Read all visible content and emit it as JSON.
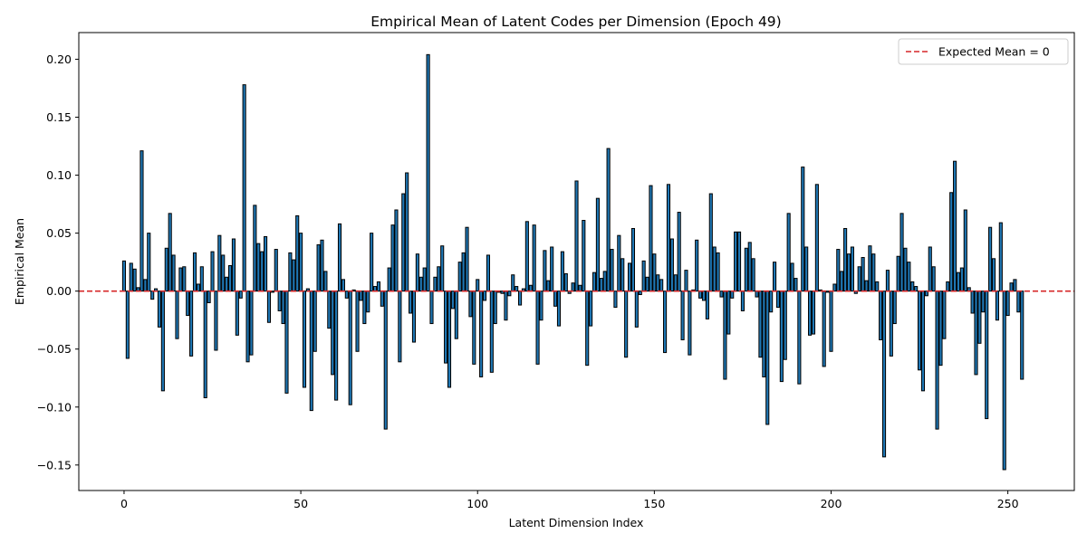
{
  "chart_data": {
    "type": "bar",
    "title": "Empirical Mean of Latent Codes per Dimension (Epoch 49)",
    "xlabel": "Latent Dimension Index",
    "ylabel": "Empirical Mean",
    "xlim": [
      -12.8,
      268.8
    ],
    "ylim": [
      -0.172,
      0.223
    ],
    "xticks": [
      0,
      50,
      100,
      150,
      200,
      250
    ],
    "xtick_labels": [
      "0",
      "50",
      "100",
      "150",
      "200",
      "250"
    ],
    "yticks": [
      -0.15,
      -0.1,
      -0.05,
      0.0,
      0.05,
      0.1,
      0.15,
      0.2
    ],
    "ytick_labels": [
      "−0.15",
      "−0.10",
      "−0.05",
      "0.00",
      "0.05",
      "0.10",
      "0.15",
      "0.20"
    ],
    "grid": false,
    "legend_position": "top-right",
    "bar_color": "#1f77b4",
    "bar_edge_color": "#000000",
    "reference_line": {
      "y": 0,
      "label": "Expected Mean = 0",
      "color": "#d62728",
      "style": "dashed"
    },
    "series": [
      {
        "values": [
          0.026,
          -0.058,
          0.024,
          0.019,
          0.003,
          0.121,
          0.01,
          0.05,
          -0.007,
          0.002,
          -0.031,
          -0.086,
          0.037,
          0.067,
          0.031,
          -0.041,
          0.02,
          0.021,
          -0.021,
          -0.056,
          0.033,
          0.006,
          0.021,
          -0.092,
          -0.01,
          0.034,
          -0.051,
          0.048,
          0.031,
          0.012,
          0.022,
          0.045,
          -0.038,
          -0.006,
          0.178,
          -0.061,
          -0.055,
          0.074,
          0.041,
          0.034,
          0.047,
          -0.027,
          -0.001,
          0.036,
          -0.017,
          -0.028,
          -0.088,
          0.033,
          0.027,
          0.065,
          0.05,
          -0.083,
          0.002,
          -0.103,
          -0.052,
          0.04,
          0.044,
          0.017,
          -0.032,
          -0.072,
          -0.094,
          0.058,
          0.01,
          -0.006,
          -0.098,
          0.001,
          -0.052,
          -0.008,
          -0.028,
          -0.018,
          0.05,
          0.004,
          0.008,
          -0.013,
          -0.119,
          0.02,
          0.057,
          0.07,
          -0.061,
          0.084,
          0.102,
          -0.019,
          -0.044,
          0.032,
          0.012,
          0.02,
          0.204,
          -0.028,
          0.012,
          0.021,
          0.039,
          -0.062,
          -0.083,
          -0.015,
          -0.041,
          0.025,
          0.033,
          0.055,
          -0.022,
          -0.063,
          0.01,
          -0.074,
          -0.008,
          0.031,
          -0.07,
          -0.028,
          -0.001,
          -0.002,
          -0.025,
          -0.004,
          0.014,
          0.004,
          -0.012,
          0.002,
          0.06,
          0.005,
          0.057,
          -0.063,
          -0.025,
          0.035,
          0.009,
          0.038,
          -0.013,
          -0.03,
          0.034,
          0.015,
          -0.002,
          0.007,
          0.095,
          0.005,
          0.061,
          -0.064,
          -0.03,
          0.016,
          0.08,
          0.011,
          0.017,
          0.123,
          0.036,
          -0.014,
          0.048,
          0.028,
          -0.057,
          0.024,
          0.054,
          -0.031,
          -0.003,
          0.026,
          0.012,
          0.091,
          0.032,
          0.014,
          0.01,
          -0.053,
          0.092,
          0.045,
          0.014,
          0.068,
          -0.042,
          0.018,
          -0.055,
          0.001,
          0.044,
          -0.006,
          -0.008,
          -0.024,
          0.084,
          0.038,
          0.033,
          -0.005,
          -0.076,
          -0.037,
          -0.006,
          0.051,
          0.051,
          -0.017,
          0.037,
          0.042,
          0.028,
          -0.005,
          -0.057,
          -0.074,
          -0.115,
          -0.018,
          0.025,
          -0.014,
          -0.078,
          -0.059,
          0.067,
          0.024,
          0.011,
          -0.08,
          0.107,
          0.038,
          -0.038,
          -0.037,
          0.092,
          0.001,
          -0.065,
          -0.001,
          -0.052,
          0.006,
          0.036,
          0.017,
          0.054,
          0.032,
          0.038,
          -0.002,
          0.021,
          0.029,
          0.009,
          0.039,
          0.032,
          0.008,
          -0.042,
          -0.143,
          0.018,
          -0.056,
          -0.028,
          0.03,
          0.067,
          0.037,
          0.025,
          0.008,
          0.004,
          -0.068,
          -0.086,
          -0.004,
          0.038,
          0.021,
          -0.119,
          -0.064,
          -0.041,
          0.008,
          0.085,
          0.112,
          0.016,
          0.02,
          0.07,
          0.003,
          -0.019,
          -0.072,
          -0.045,
          -0.018,
          -0.11,
          0.055,
          0.028,
          -0.025,
          0.059,
          -0.154,
          -0.021,
          0.007,
          0.01,
          -0.018,
          -0.076
        ]
      }
    ]
  }
}
